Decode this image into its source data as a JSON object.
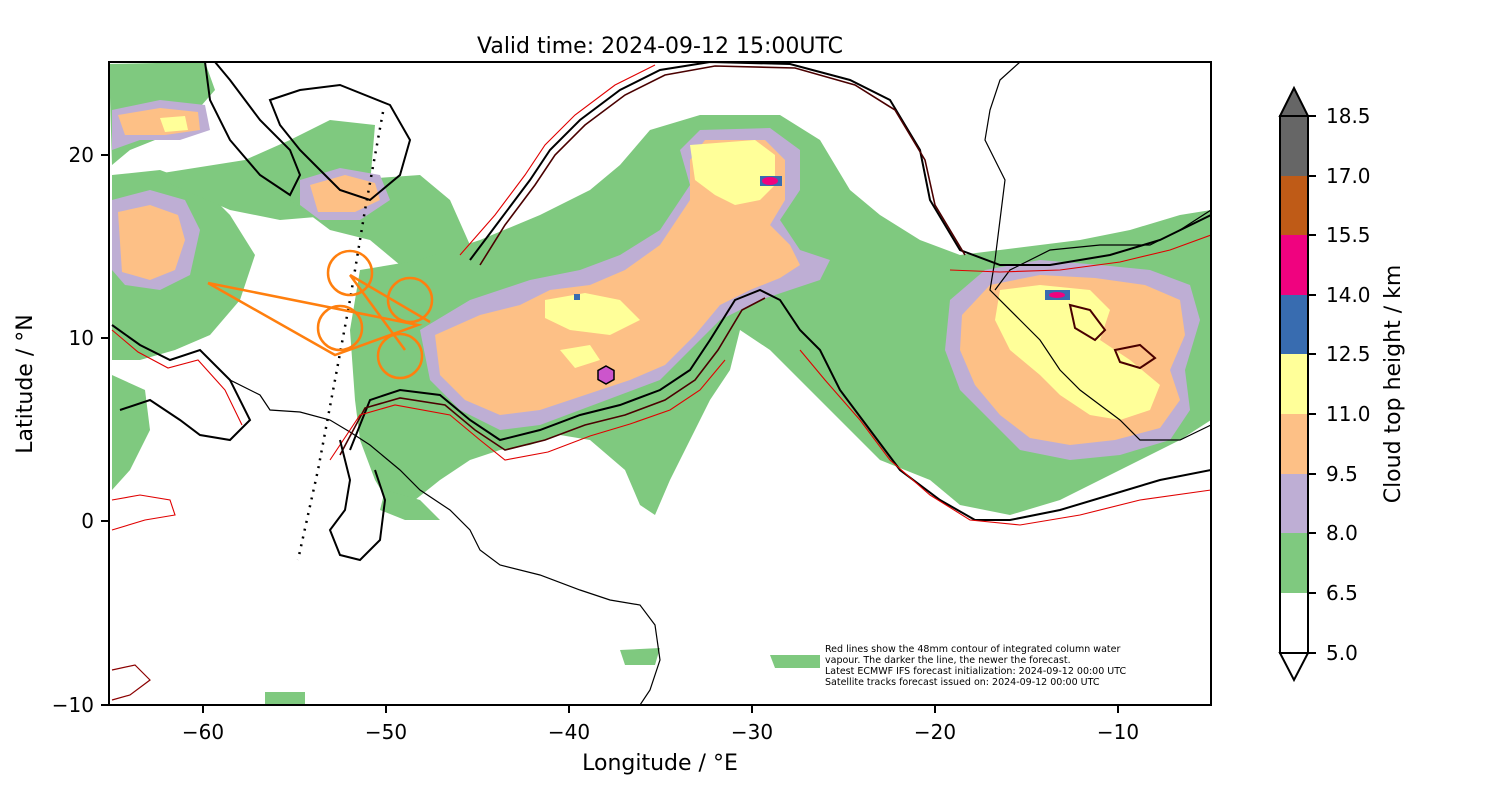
{
  "title": "Valid time: 2024-09-12 15:00UTC",
  "x_axis": {
    "label": "Longitude / °E",
    "ticks": [
      "−60",
      "−50",
      "−40",
      "−30",
      "−20",
      "−10"
    ]
  },
  "y_axis": {
    "label": "Latitude / °N",
    "ticks": [
      "20",
      "10",
      "0",
      "−10"
    ]
  },
  "colorbar": {
    "label": "Cloud top height / km",
    "ticks": [
      "18.5",
      "17.0",
      "15.5",
      "14.0",
      "12.5",
      "11.0",
      "9.5",
      "8.0",
      "6.5",
      "5.0"
    ],
    "colors": [
      "#ffffff",
      "#7fc97f",
      "#beaed4",
      "#fdc086",
      "#ffff99",
      "#386cb0",
      "#f0027f",
      "#bf5b17",
      "#666666"
    ]
  },
  "note_lines": [
    "Red lines show the 48mm contour of integrated column water",
    "vapour. The darker the line, the newer the forecast.",
    "Latest ECMWF IFS forecast initialization: 2024-09-12 00:00 UTC",
    "Satellite tracks forecast issued on: 2024-09-12 00:00 UTC"
  ],
  "map": {
    "lon_range": [
      -65,
      -5
    ],
    "lat_range": [
      -10,
      25
    ],
    "flight_track_color": "#ff7f0e",
    "marker_color": "#cc55cc",
    "contour_colors": [
      "#000000",
      "#4a0000",
      "#8b0000",
      "#e00000"
    ]
  }
}
